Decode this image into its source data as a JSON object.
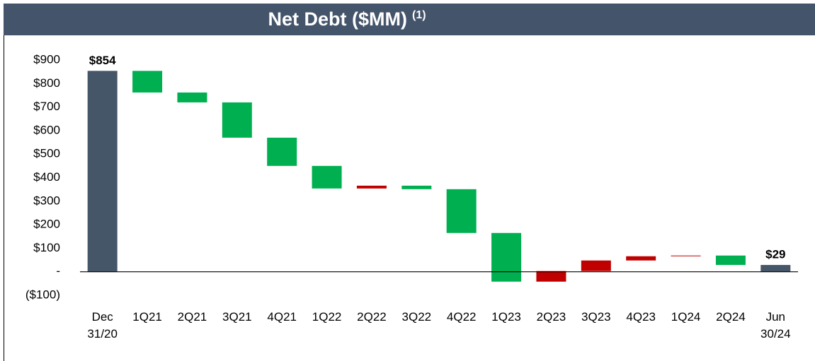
{
  "chart_data": {
    "type": "waterfall",
    "title": "Net Debt ($MM)",
    "title_note": "(1)",
    "categories": [
      "Dec 31/20",
      "1Q21",
      "2Q21",
      "3Q21",
      "4Q21",
      "1Q22",
      "2Q22",
      "3Q22",
      "4Q22",
      "1Q23",
      "2Q23",
      "3Q23",
      "4Q23",
      "1Q24",
      "2Q24",
      "Jun 30/24"
    ],
    "values": [
      854,
      -92,
      -42,
      -150,
      -120,
      -96,
      12,
      -15,
      -186,
      -207,
      45,
      45,
      18,
      3,
      -40,
      29
    ],
    "totals": [
      true,
      false,
      false,
      false,
      false,
      false,
      false,
      false,
      false,
      false,
      false,
      false,
      false,
      false,
      false,
      true
    ],
    "value_labels": [
      "$854",
      null,
      null,
      null,
      null,
      null,
      null,
      null,
      null,
      null,
      null,
      null,
      null,
      null,
      null,
      "$29"
    ],
    "colors": {
      "total": "#465669",
      "decrease": "#00b050",
      "increase": "#c00000"
    },
    "ylim": [
      -100,
      900
    ],
    "yticks": [
      {
        "value": -100,
        "label": "($100)"
      },
      {
        "value": 0,
        "label": "-"
      },
      {
        "value": 100,
        "label": "$100"
      },
      {
        "value": 200,
        "label": "$200"
      },
      {
        "value": 300,
        "label": "$300"
      },
      {
        "value": 400,
        "label": "$400"
      },
      {
        "value": 500,
        "label": "$500"
      },
      {
        "value": 600,
        "label": "$600"
      },
      {
        "value": 700,
        "label": "$700"
      },
      {
        "value": 800,
        "label": "$800"
      },
      {
        "value": 900,
        "label": "$900"
      }
    ],
    "grid": false
  }
}
